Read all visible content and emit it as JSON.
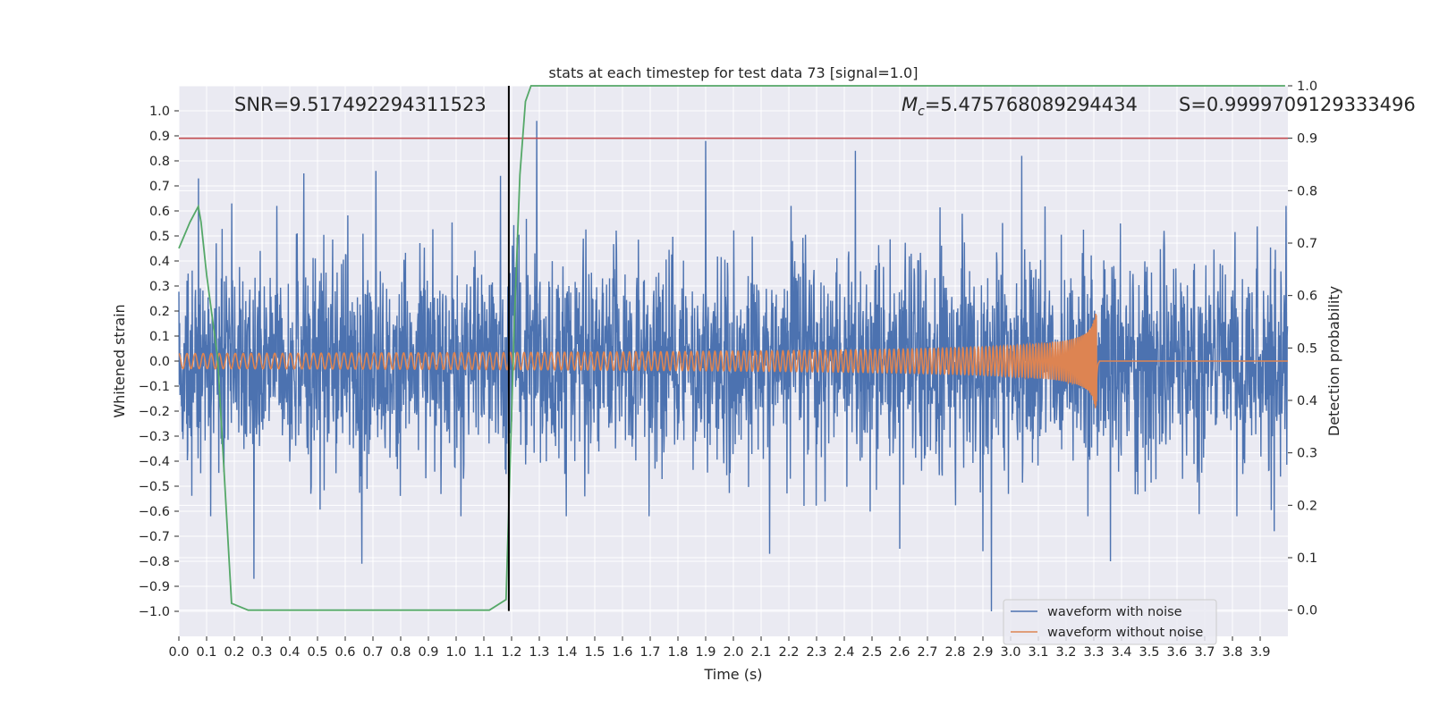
{
  "chart_data": {
    "type": "line",
    "title": "stats at each timestep for test data 73 [signal=1.0]",
    "xlabel": "Time (s)",
    "ylabel": "Whitened strain",
    "ylabel_right": "Detection probability",
    "xlim": [
      0.0,
      4.0
    ],
    "ylim": [
      -1.1,
      1.1
    ],
    "ylim_right": [
      -0.05,
      1.0
    ],
    "x_ticks": [
      "0.0",
      "0.1",
      "0.2",
      "0.3",
      "0.4",
      "0.5",
      "0.6",
      "0.7",
      "0.8",
      "0.9",
      "1.0",
      "1.1",
      "1.2",
      "1.3",
      "1.4",
      "1.5",
      "1.6",
      "1.7",
      "1.8",
      "1.9",
      "2.0",
      "2.1",
      "2.2",
      "2.3",
      "2.4",
      "2.5",
      "2.6",
      "2.7",
      "2.8",
      "2.9",
      "3.0",
      "3.1",
      "3.2",
      "3.3",
      "3.4",
      "3.5",
      "3.6",
      "3.7",
      "3.8",
      "3.9"
    ],
    "y_ticks": [
      "1.0",
      "0.9",
      "0.8",
      "0.7",
      "0.6",
      "0.5",
      "0.4",
      "0.3",
      "0.2",
      "0.1",
      "0.0",
      "−0.1",
      "−0.2",
      "−0.3",
      "−0.4",
      "−0.5",
      "−0.6",
      "−0.7",
      "−0.8",
      "−0.9",
      "−1.0"
    ],
    "y_ticks_right": [
      "1.0",
      "0.9",
      "0.8",
      "0.7",
      "0.6",
      "0.5",
      "0.4",
      "0.3",
      "0.2",
      "0.1",
      "0.0"
    ],
    "annotations": {
      "snr": "SNR=9.517492294311523",
      "mc_symbol": "M",
      "mc_sub": "c",
      "mc_value": "=5.475768089294434",
      "s": "S=0.9999709129333496"
    },
    "legend": {
      "position": "lower-right",
      "entries": [
        {
          "label": "waveform with noise",
          "color": "#4c72b0"
        },
        {
          "label": "waveform without noise",
          "color": "#dd8452"
        }
      ]
    },
    "series": [
      {
        "name": "waveform with noise",
        "color": "#4c72b0",
        "axis": "left",
        "description": "whitened noisy strain, roughly within [-0.5, 0.5] with spikes",
        "spikes": [
          {
            "x": 0.07,
            "y": 0.73
          },
          {
            "x": 0.19,
            "y": 0.63
          },
          {
            "x": 0.27,
            "y": -0.87
          },
          {
            "x": 0.45,
            "y": 0.75
          },
          {
            "x": 0.66,
            "y": -0.81
          },
          {
            "x": 0.71,
            "y": 0.76
          },
          {
            "x": 1.16,
            "y": 0.74
          },
          {
            "x": 1.29,
            "y": 0.96
          },
          {
            "x": 1.9,
            "y": 0.88
          },
          {
            "x": 2.13,
            "y": -0.77
          },
          {
            "x": 2.44,
            "y": 0.84
          },
          {
            "x": 2.6,
            "y": -0.75
          },
          {
            "x": 2.9,
            "y": -0.76
          },
          {
            "x": 2.93,
            "y": -1.0
          },
          {
            "x": 3.04,
            "y": 0.82
          },
          {
            "x": 3.36,
            "y": -0.8
          },
          {
            "x": 3.95,
            "y": -0.68
          }
        ]
      },
      {
        "name": "waveform without noise",
        "color": "#dd8452",
        "axis": "left",
        "description": "chirp signal ending at merger",
        "amplitude_start": 0.03,
        "amplitude_end": 0.19,
        "merger_time": 3.31,
        "freq_start_hz": 34,
        "ringdown_level": 0.0
      },
      {
        "name": "detection probability",
        "color": "#55a868",
        "axis": "right",
        "x": [
          0.0,
          0.04,
          0.07,
          0.08,
          0.1,
          0.14,
          0.19,
          0.25,
          1.12,
          1.18,
          1.21,
          1.23,
          1.25,
          1.27,
          3.99
        ],
        "y": [
          0.69,
          0.74,
          0.77,
          0.74,
          0.64,
          0.48,
          0.013,
          0.0,
          0.0,
          0.02,
          0.55,
          0.83,
          0.97,
          1.0,
          1.0
        ]
      }
    ],
    "threshold_right": 0.9,
    "threshold_color": "#c44e52",
    "marker_time": 1.19,
    "marker_color": "#000000"
  }
}
